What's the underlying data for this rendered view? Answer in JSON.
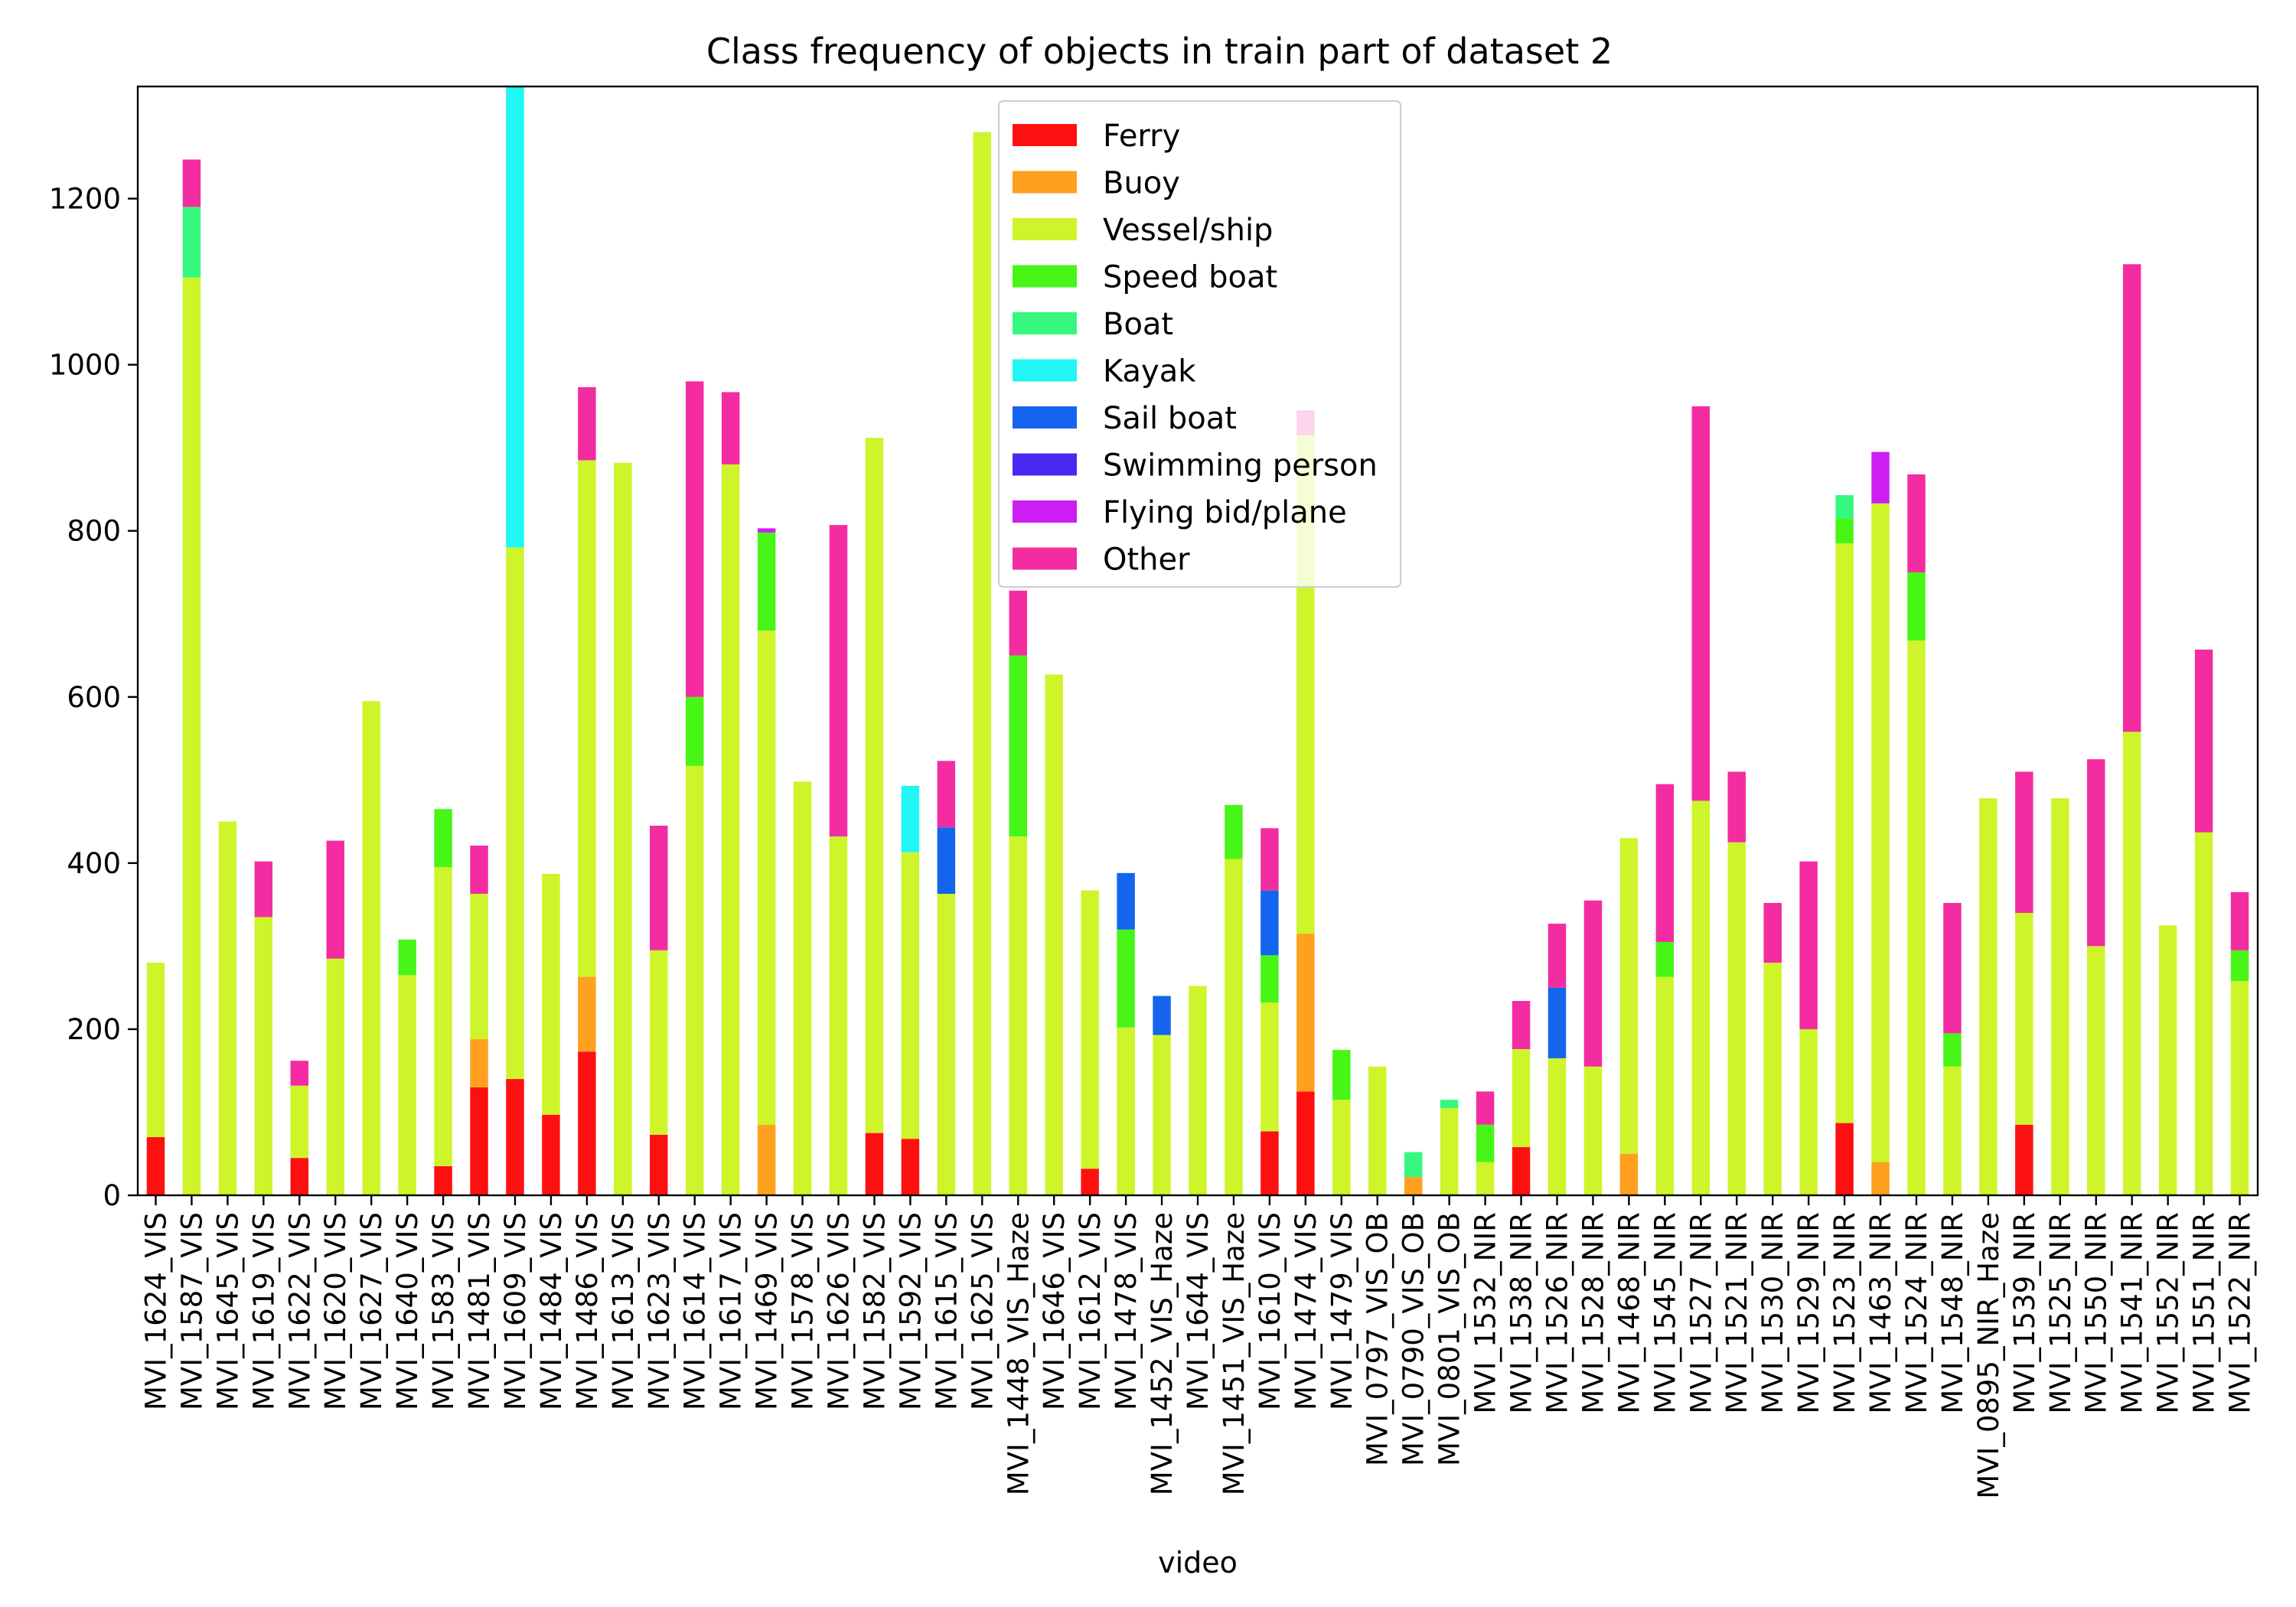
{
  "chart_data": {
    "type": "bar",
    "stacked": true,
    "title": "Class frequency of objects in train part of dataset 2",
    "xlabel": "video",
    "ylabel": "",
    "ylim": [
      0,
      1335
    ],
    "yticks": [
      0,
      200,
      400,
      600,
      800,
      1000,
      1200
    ],
    "grid": false,
    "legend_position": "top-center",
    "categories": [
      "MVI_1624_VIS",
      "MVI_1587_VIS",
      "MVI_1645_VIS",
      "MVI_1619_VIS",
      "MVI_1622_VIS",
      "MVI_1620_VIS",
      "MVI_1627_VIS",
      "MVI_1640_VIS",
      "MVI_1583_VIS",
      "MVI_1481_VIS",
      "MVI_1609_VIS",
      "MVI_1484_VIS",
      "MVI_1486_VIS",
      "MVI_1613_VIS",
      "MVI_1623_VIS",
      "MVI_1614_VIS",
      "MVI_1617_VIS",
      "MVI_1469_VIS",
      "MVI_1578_VIS",
      "MVI_1626_VIS",
      "MVI_1582_VIS",
      "MVI_1592_VIS",
      "MVI_1615_VIS",
      "MVI_1625_VIS",
      "MVI_1448_VIS_Haze",
      "MVI_1646_VIS",
      "MVI_1612_VIS",
      "MVI_1478_VIS",
      "MVI_1452_VIS_Haze",
      "MVI_1644_VIS",
      "MVI_1451_VIS_Haze",
      "MVI_1610_VIS",
      "MVI_1474_VIS",
      "MVI_1479_VIS",
      "MVI_0797_VIS_OB",
      "MVI_0790_VIS_OB",
      "MVI_0801_VIS_OB",
      "MVI_1532_NIR",
      "MVI_1538_NIR",
      "MVI_1526_NIR",
      "MVI_1528_NIR",
      "MVI_1468_NIR",
      "MVI_1545_NIR",
      "MVI_1527_NIR",
      "MVI_1521_NIR",
      "MVI_1530_NIR",
      "MVI_1529_NIR",
      "MVI_1523_NIR",
      "MVI_1463_NIR",
      "MVI_1524_NIR",
      "MVI_1548_NIR",
      "MVI_0895_NIR_Haze",
      "MVI_1539_NIR",
      "MVI_1525_NIR",
      "MVI_1550_NIR",
      "MVI_1541_NIR",
      "MVI_1552_NIR",
      "MVI_1551_NIR",
      "MVI_1522_NIR"
    ],
    "series": [
      {
        "name": "Ferry",
        "color": "#ff1010",
        "values": [
          70,
          0,
          0,
          0,
          45,
          0,
          0,
          0,
          35,
          130,
          140,
          97,
          173,
          0,
          73,
          0,
          0,
          0,
          0,
          0,
          75,
          68,
          0,
          0,
          0,
          0,
          32,
          0,
          0,
          0,
          0,
          77,
          125,
          0,
          0,
          0,
          0,
          0,
          58,
          0,
          0,
          0,
          0,
          0,
          0,
          0,
          0,
          87,
          0,
          0,
          0,
          0,
          85,
          0,
          0,
          0,
          0,
          0,
          0
        ]
      },
      {
        "name": "Buoy",
        "color": "#ffa01e",
        "values": [
          0,
          0,
          0,
          0,
          0,
          0,
          0,
          0,
          0,
          58,
          0,
          0,
          90,
          0,
          0,
          0,
          0,
          85,
          0,
          0,
          0,
          0,
          0,
          0,
          0,
          0,
          0,
          0,
          0,
          0,
          0,
          0,
          190,
          0,
          0,
          22,
          0,
          0,
          0,
          0,
          0,
          50,
          0,
          0,
          0,
          0,
          0,
          0,
          40,
          0,
          0,
          0,
          0,
          0,
          0,
          0,
          0,
          0,
          0
        ]
      },
      {
        "name": "Vessel/ship",
        "color": "#cdf52a",
        "values": [
          210,
          1105,
          450,
          335,
          87,
          285,
          595,
          265,
          360,
          175,
          640,
          290,
          622,
          882,
          222,
          517,
          880,
          595,
          498,
          432,
          837,
          345,
          363,
          1280,
          432,
          627,
          335,
          202,
          193,
          252,
          405,
          155,
          600,
          115,
          155,
          0,
          105,
          40,
          118,
          165,
          155,
          380,
          263,
          475,
          425,
          280,
          200,
          698,
          793,
          668,
          155,
          478,
          255,
          478,
          300,
          558,
          325,
          437,
          258
        ]
      },
      {
        "name": "Speed boat",
        "color": "#47f617",
        "values": [
          0,
          0,
          0,
          0,
          0,
          0,
          0,
          43,
          70,
          0,
          0,
          0,
          0,
          0,
          0,
          83,
          0,
          118,
          0,
          0,
          0,
          0,
          0,
          0,
          218,
          0,
          0,
          118,
          0,
          0,
          65,
          57,
          0,
          60,
          0,
          0,
          0,
          45,
          0,
          0,
          0,
          0,
          42,
          0,
          0,
          0,
          0,
          30,
          0,
          82,
          40,
          0,
          0,
          0,
          0,
          0,
          0,
          0,
          37
        ]
      },
      {
        "name": "Boat",
        "color": "#36f87f",
        "values": [
          0,
          85,
          0,
          0,
          0,
          0,
          0,
          0,
          0,
          0,
          0,
          0,
          0,
          0,
          0,
          0,
          0,
          0,
          0,
          0,
          0,
          0,
          0,
          0,
          0,
          0,
          0,
          0,
          0,
          0,
          0,
          0,
          0,
          0,
          0,
          30,
          10,
          0,
          0,
          0,
          0,
          0,
          0,
          0,
          0,
          0,
          0,
          28,
          0,
          0,
          0,
          0,
          0,
          0,
          0,
          0,
          0,
          0,
          0
        ]
      },
      {
        "name": "Kayak",
        "color": "#20f7f4",
        "values": [
          0,
          0,
          0,
          0,
          0,
          0,
          0,
          0,
          0,
          0,
          555,
          0,
          0,
          0,
          0,
          0,
          0,
          0,
          0,
          0,
          0,
          80,
          0,
          0,
          0,
          0,
          0,
          0,
          0,
          0,
          0,
          0,
          0,
          0,
          0,
          0,
          0,
          0,
          0,
          0,
          0,
          0,
          0,
          0,
          0,
          0,
          0,
          0,
          0,
          0,
          0,
          0,
          0,
          0,
          0,
          0,
          0,
          0,
          0
        ]
      },
      {
        "name": "Sail boat",
        "color": "#1464ee",
        "values": [
          0,
          0,
          0,
          0,
          0,
          0,
          0,
          0,
          0,
          0,
          0,
          0,
          0,
          0,
          0,
          0,
          0,
          0,
          0,
          0,
          0,
          0,
          80,
          0,
          0,
          0,
          0,
          68,
          47,
          0,
          0,
          78,
          0,
          0,
          0,
          0,
          0,
          0,
          0,
          85,
          0,
          0,
          0,
          0,
          0,
          0,
          0,
          0,
          0,
          0,
          0,
          0,
          0,
          0,
          0,
          0,
          0,
          0,
          0
        ]
      },
      {
        "name": "Swimming person",
        "color": "#4a28ef",
        "values": [
          0,
          0,
          0,
          0,
          0,
          0,
          0,
          0,
          0,
          0,
          0,
          0,
          0,
          0,
          0,
          0,
          0,
          0,
          0,
          0,
          0,
          0,
          0,
          0,
          0,
          0,
          0,
          0,
          0,
          0,
          0,
          0,
          0,
          0,
          0,
          0,
          0,
          0,
          0,
          0,
          0,
          0,
          0,
          0,
          0,
          0,
          0,
          0,
          0,
          0,
          0,
          0,
          0,
          0,
          0,
          0,
          0,
          0,
          0
        ]
      },
      {
        "name": "Flying bid/plane",
        "color": "#cc1ef3",
        "values": [
          0,
          0,
          0,
          0,
          0,
          0,
          0,
          0,
          0,
          0,
          0,
          0,
          0,
          0,
          0,
          0,
          0,
          5,
          0,
          0,
          0,
          0,
          0,
          0,
          0,
          0,
          0,
          0,
          0,
          0,
          0,
          0,
          0,
          0,
          0,
          0,
          0,
          0,
          0,
          0,
          0,
          0,
          0,
          0,
          0,
          0,
          0,
          0,
          62,
          0,
          0,
          0,
          0,
          0,
          0,
          0,
          0,
          0,
          0
        ]
      },
      {
        "name": "Other",
        "color": "#f42ca1",
        "values": [
          0,
          57,
          0,
          67,
          30,
          142,
          0,
          0,
          0,
          58,
          0,
          0,
          88,
          0,
          150,
          380,
          87,
          0,
          0,
          375,
          0,
          0,
          80,
          0,
          78,
          0,
          0,
          0,
          0,
          0,
          0,
          75,
          30,
          0,
          0,
          0,
          0,
          40,
          58,
          77,
          200,
          0,
          190,
          475,
          85,
          72,
          202,
          0,
          0,
          118,
          157,
          0,
          170,
          0,
          225,
          563,
          0,
          220,
          70
        ]
      }
    ]
  }
}
